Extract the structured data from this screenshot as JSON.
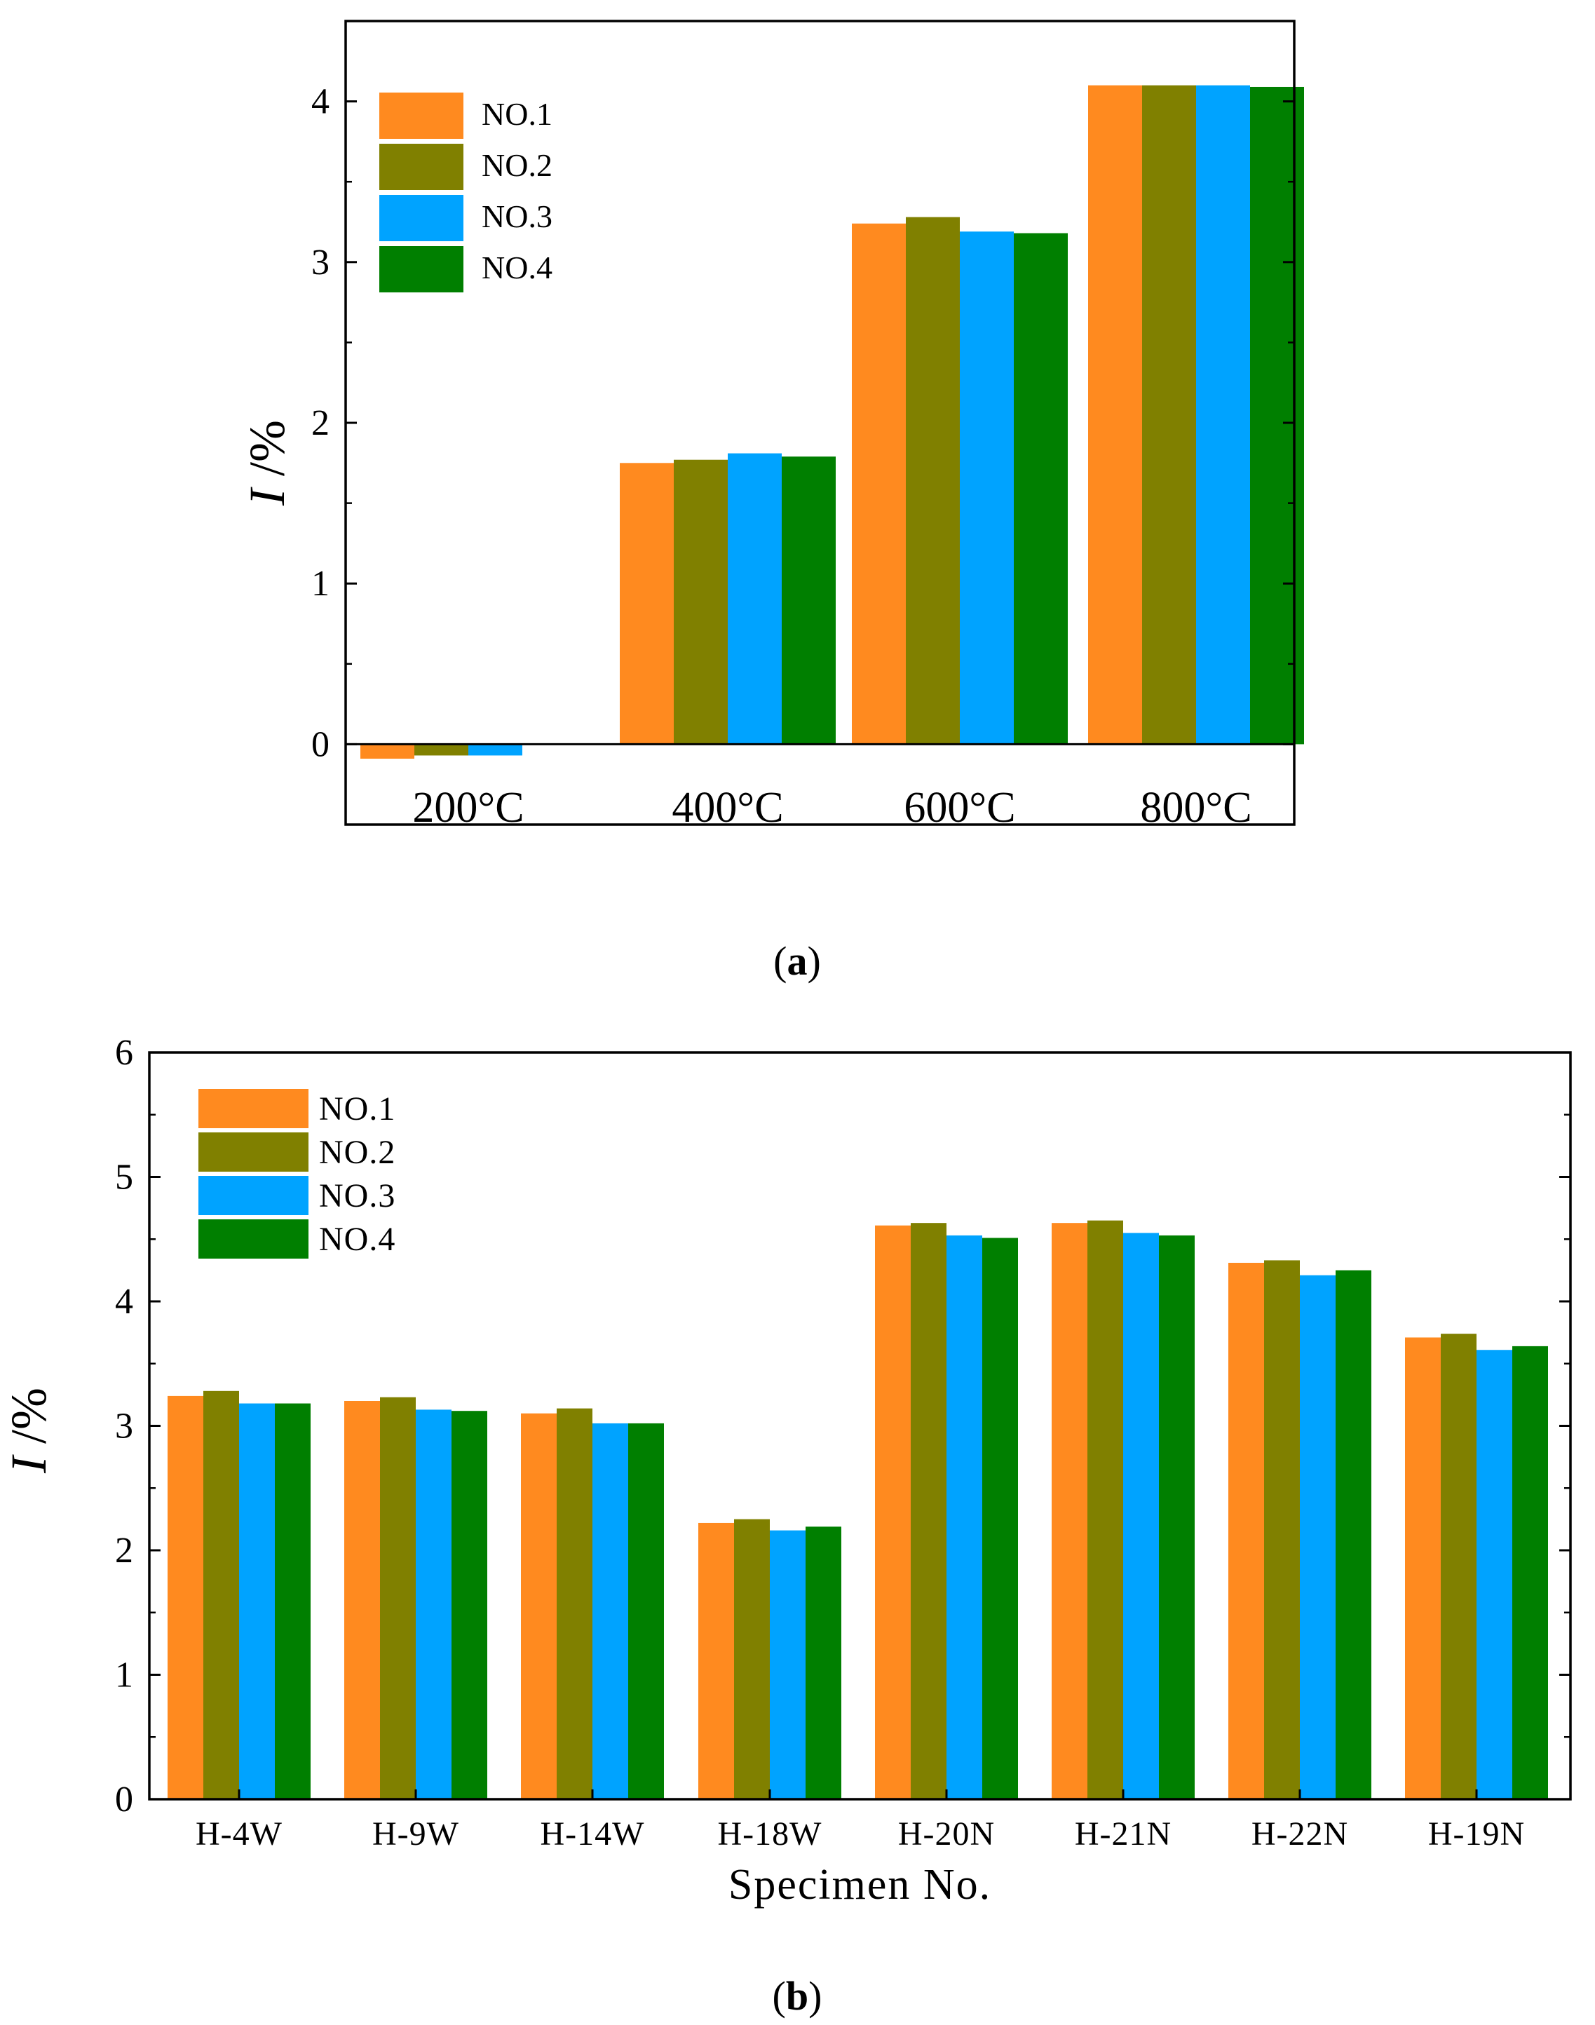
{
  "colors": {
    "NO.1": "#ff8a1f",
    "NO.2": "#808000",
    "NO.3": "#00a3ff",
    "NO.4": "#007f00",
    "axis": "#000000"
  },
  "chart_data": [
    {
      "id": "a",
      "type": "bar",
      "panel_label_open": "(",
      "panel_label_letter": "a",
      "panel_label_close": ")",
      "title": "",
      "xlabel": "",
      "ylabel_italic": "I",
      "ylabel_rest": " /%",
      "ylim": [
        -0.5,
        4.5
      ],
      "yticks": [
        0,
        1,
        2,
        3,
        4
      ],
      "ytick_labels": [
        "0",
        "1",
        "2",
        "3",
        "4"
      ],
      "categories": [
        "200°C",
        "400°C",
        "600°C",
        "800°C"
      ],
      "legend_position": "top-left",
      "series": [
        {
          "name": "NO.1",
          "values": [
            -0.09,
            1.75,
            3.24,
            4.1
          ]
        },
        {
          "name": "NO.2",
          "values": [
            -0.07,
            1.77,
            3.28,
            4.1
          ]
        },
        {
          "name": "NO.3",
          "values": [
            -0.07,
            1.81,
            3.19,
            4.1
          ]
        },
        {
          "name": "NO.4",
          "values": [
            0.0,
            1.79,
            3.18,
            4.09
          ]
        }
      ]
    },
    {
      "id": "b",
      "type": "bar",
      "panel_label_open": "(",
      "panel_label_letter": "b",
      "panel_label_close": ")",
      "title": "",
      "xlabel": "Specimen No.",
      "ylabel_italic": "I",
      "ylabel_rest": " /%",
      "ylim": [
        0,
        6
      ],
      "yticks": [
        0,
        1,
        2,
        3,
        4,
        5,
        6
      ],
      "ytick_labels": [
        "0",
        "1",
        "2",
        "3",
        "4",
        "5",
        "6"
      ],
      "categories": [
        "H-4W",
        "H-9W",
        "H-14W",
        "H-18W",
        "H-20N",
        "H-21N",
        "H-22N",
        "H-19N"
      ],
      "legend_position": "top-left",
      "series": [
        {
          "name": "NO.1",
          "values": [
            3.24,
            3.2,
            3.1,
            2.22,
            4.61,
            4.63,
            4.31,
            3.71
          ]
        },
        {
          "name": "NO.2",
          "values": [
            3.28,
            3.23,
            3.14,
            2.25,
            4.63,
            4.65,
            4.33,
            3.74
          ]
        },
        {
          "name": "NO.3",
          "values": [
            3.18,
            3.13,
            3.02,
            2.16,
            4.53,
            4.55,
            4.21,
            3.61
          ]
        },
        {
          "name": "NO.4",
          "values": [
            3.18,
            3.12,
            3.02,
            2.19,
            4.51,
            4.53,
            4.25,
            3.64
          ]
        }
      ]
    }
  ]
}
